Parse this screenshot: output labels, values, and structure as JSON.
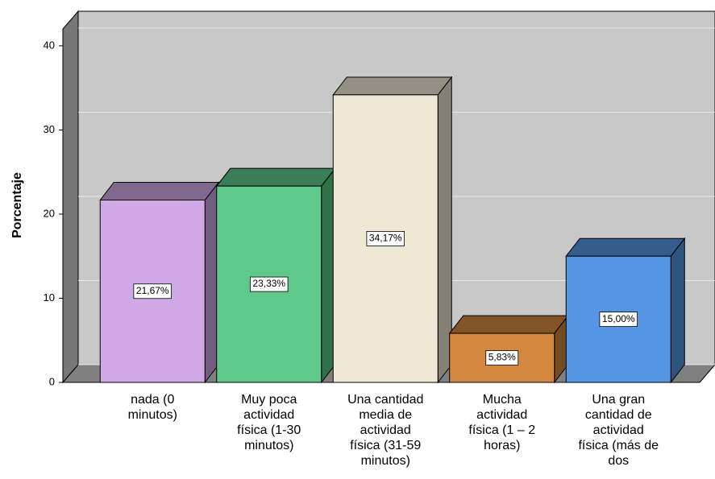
{
  "chart_data": {
    "type": "bar3d",
    "y_label": "Porcentaje",
    "categories": [
      "nada (0 minutos)",
      "Muy poca actividad física (1-30 minutos)",
      "Una cantidad media de actividad física (31-59 minutos)",
      "Mucha actividad física (1 – 2 horas)",
      "Una gran cantidad de actividad física (más de dos"
    ],
    "values": [
      21.67,
      23.33,
      34.17,
      5.83,
      15.0
    ],
    "value_labels": [
      "21,67%",
      "23,33%",
      "34,17%",
      "5,83%",
      "15,00%"
    ],
    "colors": [
      "#cfa8e6",
      "#5ec98a",
      "#efe8d4",
      "#d4883f",
      "#5496e3"
    ],
    "ylim": [
      0,
      42
    ],
    "yticks": [
      0,
      10,
      20,
      30,
      40
    ],
    "grid": true
  }
}
